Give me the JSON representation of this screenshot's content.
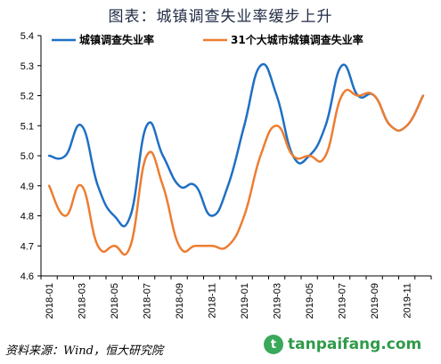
{
  "title": "图表：城镇调查失业率缓步上升",
  "source": "资料来源：Wind，恒大研究院",
  "watermark": {
    "logo_icon": "tanpaifang-logo-icon",
    "text": "tanpaifang.com"
  },
  "colors": {
    "series1": "#1f6fc4",
    "series2": "#ed7d31",
    "axis": "#000000"
  },
  "chart_data": {
    "type": "line",
    "title": "",
    "xlabel": "",
    "ylabel": "",
    "ylim": [
      4.6,
      5.4
    ],
    "yticks": [
      4.6,
      4.7,
      4.8,
      4.9,
      5.0,
      5.1,
      5.2,
      5.3,
      5.4
    ],
    "ytick_labels": [
      "4.6",
      "4.7",
      "4.8",
      "4.9",
      "5.0",
      "5.1",
      "5.2",
      "5.3",
      "5.4"
    ],
    "x": [
      "2018-01",
      "2018-02",
      "2018-03",
      "2018-04",
      "2018-05",
      "2018-06",
      "2018-07",
      "2018-08",
      "2018-09",
      "2018-10",
      "2018-11",
      "2018-12",
      "2019-01",
      "2019-02",
      "2019-03",
      "2019-04",
      "2019-05",
      "2019-06",
      "2019-07",
      "2019-08",
      "2019-09",
      "2019-10",
      "2019-11",
      "2019-12"
    ],
    "xtick_labels": [
      "2018-01",
      "2018-03",
      "2018-05",
      "2018-07",
      "2018-09",
      "2018-11",
      "2019-01",
      "2019-03",
      "2019-05",
      "2019-07",
      "2019-09",
      "2019-11"
    ],
    "grid": false,
    "legend_position": "top-left",
    "series": [
      {
        "name": "城镇调查失业率",
        "values": [
          5.0,
          5.0,
          5.1,
          4.9,
          4.8,
          4.8,
          5.1,
          5.0,
          4.9,
          4.9,
          4.8,
          4.9,
          5.1,
          5.3,
          5.2,
          5.0,
          5.0,
          5.1,
          5.3,
          5.2,
          5.2,
          5.1,
          5.1,
          5.2
        ]
      },
      {
        "name": "31个大城市城镇调查失业率",
        "values": [
          4.9,
          4.8,
          4.9,
          4.7,
          4.7,
          4.7,
          5.0,
          4.9,
          4.7,
          4.7,
          4.7,
          4.7,
          4.8,
          5.0,
          5.1,
          5.0,
          5.0,
          5.0,
          5.2,
          5.2,
          5.2,
          5.1,
          5.1,
          5.2
        ]
      }
    ]
  }
}
